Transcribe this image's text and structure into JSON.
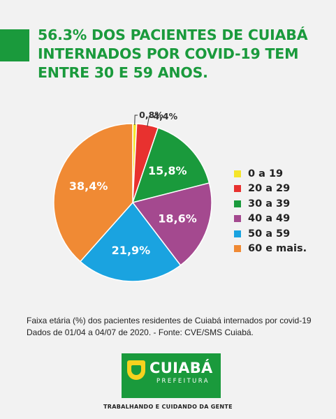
{
  "headline": {
    "pct": "56.3%",
    "line1_rest": " DOS PACIENTES DE CUIABÁ",
    "line2": "INTERNADOS POR COVID-19 TEM",
    "line3": "ENTRE 30 E 59 ANOS."
  },
  "chart_data": {
    "type": "pie",
    "categories": [
      "0 a 19",
      "20 a 29",
      "30 a 39",
      "40 a 49",
      "50 a 59",
      "60 e mais."
    ],
    "values": [
      0.8,
      4.4,
      15.8,
      18.6,
      21.9,
      38.4
    ],
    "labels": [
      "0,8%",
      "4,4%",
      "15,8%",
      "18,6%",
      "21,9%",
      "38,4%"
    ],
    "colors": [
      "#f5e52a",
      "#e8312f",
      "#1a9a3c",
      "#a4498f",
      "#1aa3e0",
      "#f08a34"
    ],
    "legend": "right"
  },
  "caption": {
    "line1": "Faixa etária (%) dos pacientes residentes de Cuiabá internados por covid-19",
    "line2": "Dados de 01/04 a 04/07 de 2020. - Fonte: CVE/SMS Cuiabá."
  },
  "logo": {
    "name": "CUIABÁ",
    "sub": "PREFEITURA"
  },
  "tagline": "TRABALHANDO E CUIDANDO DA GENTE"
}
